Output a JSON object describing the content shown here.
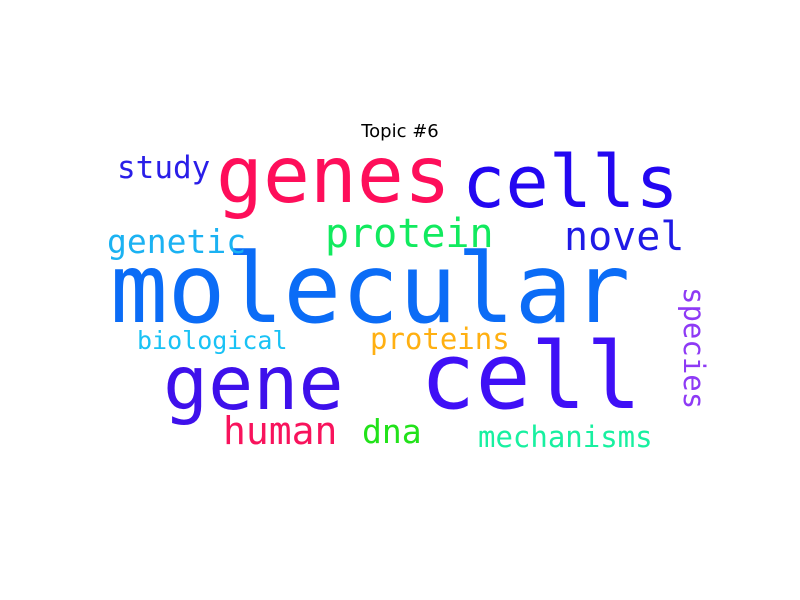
{
  "title": "Topic #6",
  "words": [
    {
      "key": "molecular",
      "text": "molecular",
      "color": "#0B6CF6"
    },
    {
      "key": "cell",
      "text": "cell",
      "color": "#3F10F6"
    },
    {
      "key": "genes",
      "text": "genes",
      "color": "#FE0E5A"
    },
    {
      "key": "cells",
      "text": "cells",
      "color": "#2307F1"
    },
    {
      "key": "gene",
      "text": "gene",
      "color": "#3E10EB"
    },
    {
      "key": "protein",
      "text": "protein",
      "color": "#11EA5E"
    },
    {
      "key": "novel",
      "text": "novel",
      "color": "#1F1AE6"
    },
    {
      "key": "human",
      "text": "human",
      "color": "#F8135C"
    },
    {
      "key": "genetic",
      "text": "genetic",
      "color": "#1BB2F2"
    },
    {
      "key": "study",
      "text": "study",
      "color": "#2A1EE8"
    },
    {
      "key": "mechanisms",
      "text": "mechanisms",
      "color": "#18F0A0"
    },
    {
      "key": "proteins",
      "text": "proteins",
      "color": "#FFB012"
    },
    {
      "key": "species",
      "text": "species",
      "color": "#8E3AF5"
    },
    {
      "key": "biological",
      "text": "biological",
      "color": "#19C2F5"
    },
    {
      "key": "dna",
      "text": "dna",
      "color": "#22E21A"
    }
  ]
}
